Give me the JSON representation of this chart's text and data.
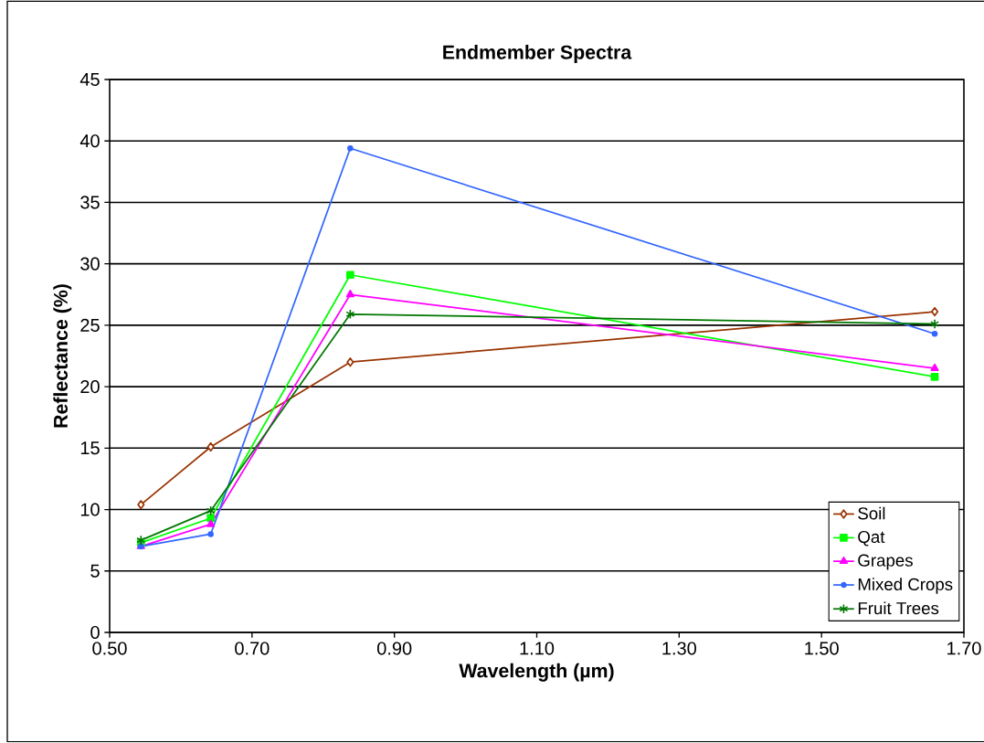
{
  "chart_data": {
    "type": "line",
    "title": "Endmember Spectra",
    "xlabel": "Wavelength (µm)",
    "ylabel": "Reflectance (%)",
    "x": [
      0.544,
      0.642,
      0.838,
      1.659
    ],
    "series": [
      {
        "name": "Soil",
        "color": "#993300",
        "marker": "diamond",
        "values": [
          10.4,
          15.1,
          22.0,
          26.1
        ]
      },
      {
        "name": "Qat",
        "color": "#00ff00",
        "marker": "square",
        "values": [
          7.3,
          9.3,
          29.1,
          20.8
        ]
      },
      {
        "name": "Grapes",
        "color": "#ff00ff",
        "marker": "triangle",
        "values": [
          7.0,
          8.8,
          27.5,
          21.5
        ]
      },
      {
        "name": "Mixed Crops",
        "color": "#3366ff",
        "marker": "circle",
        "values": [
          7.0,
          8.0,
          39.4,
          24.3
        ]
      },
      {
        "name": "Fruit Trees",
        "color": "#007700",
        "marker": "cross",
        "values": [
          7.5,
          9.9,
          25.9,
          25.1
        ]
      }
    ],
    "xlim": [
      0.5,
      1.7
    ],
    "xticks": [
      {
        "value": 0.5,
        "label": "0.50"
      },
      {
        "value": 0.7,
        "label": "0.70"
      },
      {
        "value": 0.9,
        "label": "0.90"
      },
      {
        "value": 1.1,
        "label": "1.10"
      },
      {
        "value": 1.3,
        "label": "1.30"
      },
      {
        "value": 1.5,
        "label": "1.50"
      },
      {
        "value": 1.7,
        "label": "1.70"
      }
    ],
    "ylim": [
      0,
      45
    ],
    "yticks": [
      0,
      5,
      10,
      15,
      20,
      25,
      30,
      35,
      40,
      45
    ],
    "grid": "y",
    "legend": "bottom right",
    "line_style": "solid"
  }
}
